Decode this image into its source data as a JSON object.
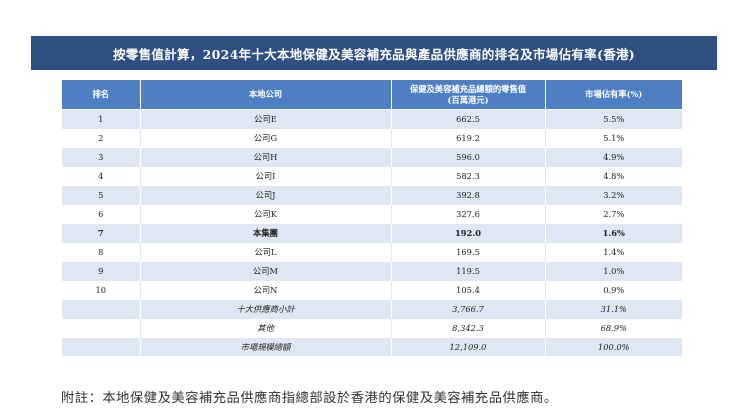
{
  "title": "按零售值計算，2024年十大本地保健及美容補充品與產品供應商的排名及市場佔有率(香港)",
  "table": {
    "headers": {
      "rank": "排名",
      "company": "本地公司",
      "value_line1": "保健及美容補充品總額的零售值",
      "value_line2": "(百萬港元)",
      "share": "市場佔有率(%)"
    },
    "rows": [
      {
        "rank": "1",
        "company": "公司E",
        "value": "662.5",
        "share": "5.5%"
      },
      {
        "rank": "2",
        "company": "公司G",
        "value": "619.2",
        "share": "5.1%"
      },
      {
        "rank": "3",
        "company": "公司H",
        "value": "596.0",
        "share": "4.9%"
      },
      {
        "rank": "4",
        "company": "公司I",
        "value": "582.3",
        "share": "4.8%"
      },
      {
        "rank": "5",
        "company": "公司J",
        "value": "392.8",
        "share": "3.2%"
      },
      {
        "rank": "6",
        "company": "公司K",
        "value": "327.6",
        "share": "2.7%"
      },
      {
        "rank": "7",
        "company": "本集團",
        "value": "192.0",
        "share": "1.6%"
      },
      {
        "rank": "8",
        "company": "公司L",
        "value": "169.5",
        "share": "1.4%"
      },
      {
        "rank": "9",
        "company": "公司M",
        "value": "119.5",
        "share": "1.0%"
      },
      {
        "rank": "10",
        "company": "公司N",
        "value": "105.4",
        "share": "0.9%"
      }
    ],
    "summary": [
      {
        "label": "十大供應商小計",
        "value": "3,766.7",
        "share": "31.1%"
      },
      {
        "label": "其他",
        "value": "8,342.3",
        "share": "68.9%"
      },
      {
        "label": "市場規模總額",
        "value": "12,109.0",
        "share": "100.0%"
      }
    ]
  },
  "note": "附註：本地保健及美容補充品供應商指總部設於香港的保健及美容補充品供應商。"
}
